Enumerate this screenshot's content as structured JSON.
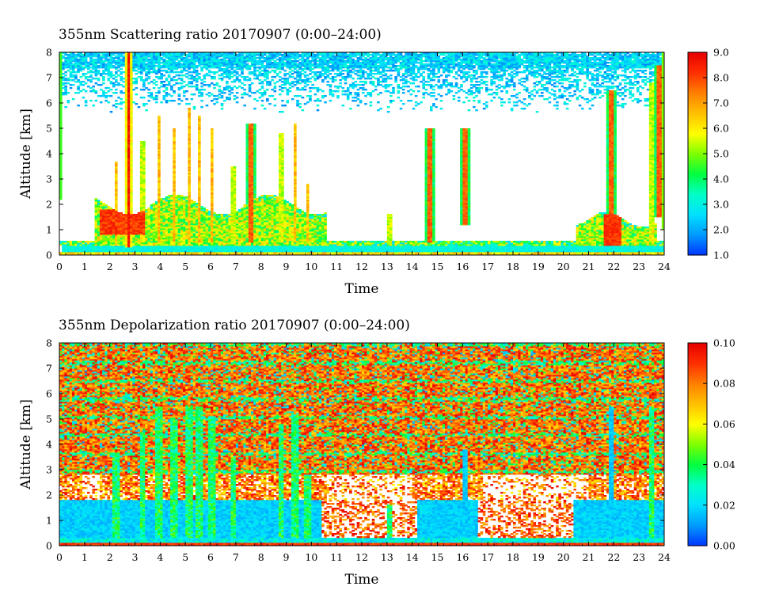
{
  "chart_data": [
    {
      "type": "heatmap",
      "title": "355nm Scattering ratio  20170907 (0:00–24:00)",
      "xlabel": "Time",
      "ylabel": "Altitude [km]",
      "xlim": [
        0,
        24
      ],
      "ylim": [
        0,
        8
      ],
      "x_ticks": [
        "0",
        "1",
        "2",
        "3",
        "4",
        "5",
        "6",
        "7",
        "8",
        "9",
        "10",
        "11",
        "12",
        "13",
        "14",
        "15",
        "16",
        "17",
        "18",
        "19",
        "20",
        "21",
        "22",
        "23",
        "24"
      ],
      "y_ticks": [
        "0",
        "1",
        "2",
        "3",
        "4",
        "5",
        "6",
        "7",
        "8"
      ],
      "colorbar": {
        "range": [
          1.0,
          9.0
        ],
        "ticks": [
          "1.0",
          "2.0",
          "3.0",
          "4.0",
          "5.0",
          "6.0",
          "7.0",
          "8.0",
          "9.0"
        ],
        "colors": [
          "#0033ff",
          "#0099ff",
          "#00e0ff",
          "#00ffc8",
          "#00ff40",
          "#7dff00",
          "#ffff00",
          "#ffc000",
          "#ff8000",
          "#ff3000",
          "#e80000"
        ]
      },
      "features": [
        {
          "kind": "boundary-layer",
          "time_start": 1.4,
          "time_end": 10.5,
          "altitude_top": 2.3
        },
        {
          "kind": "cloud",
          "time": 2.75,
          "altitude_bottom": 0.3,
          "altitude_top": 8.0
        },
        {
          "kind": "cloud",
          "time": 7.6,
          "altitude_bottom": 0.5,
          "altitude_top": 5.2
        },
        {
          "kind": "cloud",
          "time": 14.7,
          "altitude_bottom": 0.5,
          "altitude_top": 5.0
        },
        {
          "kind": "cloud",
          "time": 16.1,
          "altitude_bottom": 1.2,
          "altitude_top": 5.0
        },
        {
          "kind": "cloud",
          "time": 21.9,
          "altitude_bottom": 1.2,
          "altitude_top": 6.5
        },
        {
          "kind": "cloud",
          "time": 23.8,
          "altitude_bottom": 1.5,
          "altitude_top": 7.5
        }
      ]
    },
    {
      "type": "heatmap",
      "title": "355nm Depolarization ratio  20170907 (0:00–24:00)",
      "xlabel": "Time",
      "ylabel": "Altitude [km]",
      "xlim": [
        0,
        24
      ],
      "ylim": [
        0,
        8
      ],
      "x_ticks": [
        "0",
        "1",
        "2",
        "3",
        "4",
        "5",
        "6",
        "7",
        "8",
        "9",
        "10",
        "11",
        "12",
        "13",
        "14",
        "15",
        "16",
        "17",
        "18",
        "19",
        "20",
        "21",
        "22",
        "23",
        "24"
      ],
      "y_ticks": [
        "0",
        "1",
        "2",
        "3",
        "4",
        "5",
        "6",
        "7",
        "8"
      ],
      "colorbar": {
        "range": [
          0.0,
          0.1
        ],
        "ticks": [
          "0.00",
          "0.02",
          "0.04",
          "0.06",
          "0.08",
          "0.10"
        ],
        "colors": [
          "#0033ff",
          "#0099ff",
          "#00e0ff",
          "#00ffc8",
          "#00ff40",
          "#7dff00",
          "#ffff00",
          "#ffc000",
          "#ff8000",
          "#ff3000",
          "#e80000"
        ]
      },
      "features": [
        {
          "kind": "low-depolarization-layer",
          "time_start": 0,
          "time_end": 24,
          "altitude_top": 1.8
        },
        {
          "kind": "high-noise-region",
          "altitude_bottom": 2.8,
          "altitude_top": 8.0
        },
        {
          "kind": "cloud",
          "time": 16.1,
          "altitude_bottom": 1.0,
          "altitude_top": 3.8
        },
        {
          "kind": "cloud",
          "time": 21.9,
          "altitude_bottom": 0.8,
          "altitude_top": 5.5
        }
      ]
    }
  ]
}
